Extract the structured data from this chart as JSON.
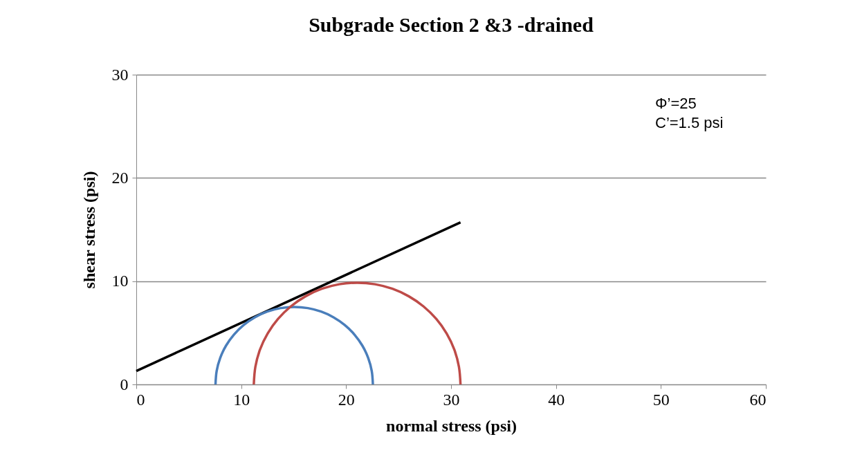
{
  "chart_data": {
    "type": "line",
    "title": "Subgrade Section 2 &3 -drained",
    "xlabel": "normal stress (psi)",
    "ylabel": "shear stress (psi)",
    "xlim": [
      0,
      60
    ],
    "xticks": [
      0,
      10,
      20,
      30,
      40,
      50,
      60
    ],
    "ylim": [
      0,
      30
    ],
    "yticks": [
      0,
      10,
      20,
      30
    ],
    "grid": "y",
    "legend": false,
    "marker": "none",
    "line_style": "solid",
    "annotations": [
      "Φ’=25",
      "C’=1.5 psi"
    ],
    "series": [
      {
        "color": "#000000",
        "x": [
          0,
          30.9
        ],
        "values": [
          1.3,
          15.7
        ]
      },
      {
        "color": "#4a7ebb",
        "x": [
          22.55,
          22.44,
          22.1,
          21.55,
          20.8,
          19.87,
          18.8,
          17.62,
          16.35,
          15.05,
          13.75,
          12.48,
          11.3,
          10.23,
          9.3,
          8.55,
          8.0,
          7.66,
          7.55
        ],
        "values": [
          0,
          1.3,
          2.57,
          3.75,
          4.82,
          5.75,
          6.5,
          7.05,
          7.39,
          7.5,
          7.39,
          7.05,
          6.5,
          5.75,
          4.82,
          3.75,
          2.57,
          1.3,
          0
        ]
      },
      {
        "color": "#be4b48",
        "x": [
          30.9,
          30.75,
          30.31,
          29.58,
          28.6,
          27.38,
          25.98,
          24.42,
          22.76,
          21.05,
          19.34,
          17.68,
          16.12,
          14.72,
          13.5,
          12.52,
          11.79,
          11.35,
          11.2
        ],
        "values": [
          0,
          1.71,
          3.37,
          4.93,
          6.33,
          7.55,
          8.53,
          9.26,
          9.7,
          9.85,
          9.7,
          9.26,
          8.53,
          7.55,
          6.33,
          4.93,
          3.37,
          1.71,
          0
        ]
      }
    ]
  }
}
